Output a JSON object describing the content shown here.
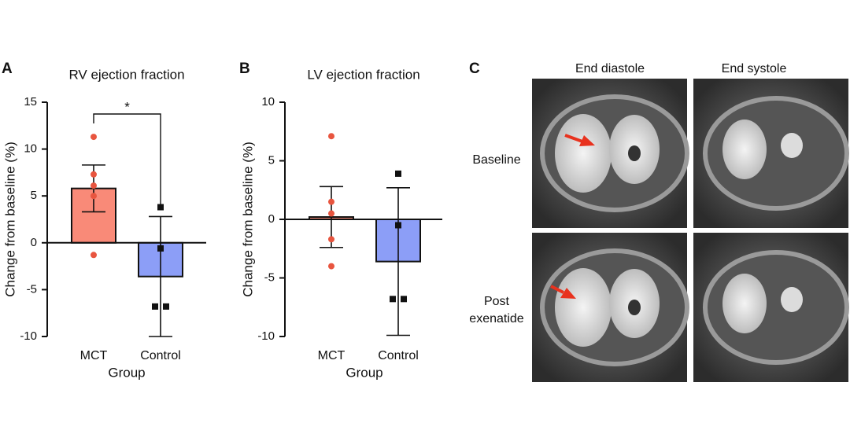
{
  "chart_data": [
    {
      "panel": "A",
      "type": "bar",
      "title": "RV ejection fraction",
      "xlabel": "Group",
      "ylabel": "Change from baseline (%)",
      "categories": [
        "MCT",
        "Control"
      ],
      "values": [
        5.8,
        -3.6
      ],
      "errors": [
        2.5,
        6.4
      ],
      "colors": [
        "#f98a78",
        "#8c9ef7"
      ],
      "points": [
        [
          11.3,
          7.3,
          6.1,
          5.0,
          -1.3
        ],
        [
          3.8,
          -0.6,
          -6.8,
          -6.8
        ]
      ],
      "point_colors": [
        "#e8553f",
        "#111111"
      ],
      "point_markers": [
        "circle",
        "square"
      ],
      "ylim": [
        -10,
        15
      ],
      "yticks": [
        -10,
        -5,
        0,
        5,
        10,
        15
      ],
      "significance": {
        "label": "*",
        "between": [
          0,
          1
        ]
      }
    },
    {
      "panel": "B",
      "type": "bar",
      "title": "LV ejection fraction",
      "xlabel": "Group",
      "ylabel": "Change from baseline (%)",
      "categories": [
        "MCT",
        "Control"
      ],
      "values": [
        0.2,
        -3.6
      ],
      "errors": [
        2.6,
        6.3
      ],
      "colors": [
        "#f98a78",
        "#8c9ef7"
      ],
      "points": [
        [
          7.1,
          1.5,
          0.5,
          -1.7,
          -4.0
        ],
        [
          3.9,
          -0.5,
          -6.8,
          -6.8
        ]
      ],
      "point_colors": [
        "#e8553f",
        "#111111"
      ],
      "point_markers": [
        "circle",
        "square"
      ],
      "ylim": [
        -10,
        10
      ],
      "yticks": [
        -10,
        -5,
        0,
        5,
        10
      ]
    }
  ],
  "panel_c": {
    "label": "C",
    "columns": [
      "End diastole",
      "End systole"
    ],
    "rows": [
      "Baseline",
      "Post exenatide"
    ]
  }
}
